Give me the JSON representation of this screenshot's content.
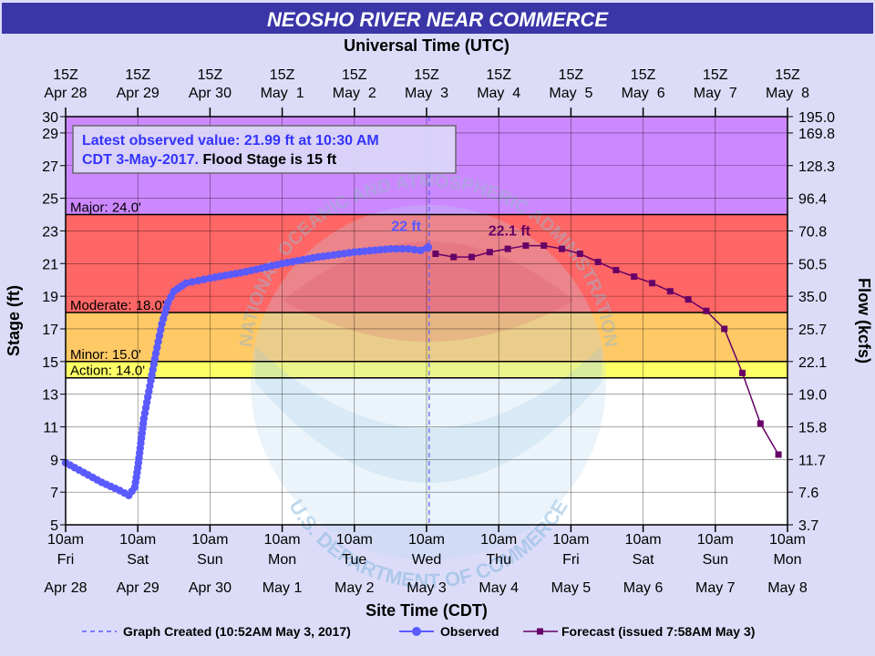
{
  "chart_data": {
    "type": "line",
    "title": "NEOSHO RIVER NEAR COMMERCE",
    "top_axis_title": "Universal Time (UTC)",
    "top_ticks": [
      {
        "l1": "15Z",
        "l2": "Apr 28"
      },
      {
        "l1": "15Z",
        "l2": "Apr 29"
      },
      {
        "l1": "15Z",
        "l2": "Apr 30"
      },
      {
        "l1": "15Z",
        "l2": "May  1"
      },
      {
        "l1": "15Z",
        "l2": "May  2"
      },
      {
        "l1": "15Z",
        "l2": "May  3"
      },
      {
        "l1": "15Z",
        "l2": "May  4"
      },
      {
        "l1": "15Z",
        "l2": "May  5"
      },
      {
        "l1": "15Z",
        "l2": "May  6"
      },
      {
        "l1": "15Z",
        "l2": "May  7"
      },
      {
        "l1": "15Z",
        "l2": "May  8"
      }
    ],
    "xlabel": "Site Time (CDT)",
    "bottom_ticks": [
      {
        "l1": "10am",
        "l2": "Fri",
        "l3": "Apr 28"
      },
      {
        "l1": "10am",
        "l2": "Sat",
        "l3": "Apr 29"
      },
      {
        "l1": "10am",
        "l2": "Sun",
        "l3": "Apr 30"
      },
      {
        "l1": "10am",
        "l2": "Mon",
        "l3": "May 1"
      },
      {
        "l1": "10am",
        "l2": "Tue",
        "l3": "May 2"
      },
      {
        "l1": "10am",
        "l2": "Wed",
        "l3": "May 3"
      },
      {
        "l1": "10am",
        "l2": "Thu",
        "l3": "May 4"
      },
      {
        "l1": "10am",
        "l2": "Fri",
        "l3": "May 5"
      },
      {
        "l1": "10am",
        "l2": "Sat",
        "l3": "May 6"
      },
      {
        "l1": "10am",
        "l2": "Sun",
        "l3": "May 7"
      },
      {
        "l1": "10am",
        "l2": "Mon",
        "l3": "May 8"
      }
    ],
    "ylabel": "Stage (ft)",
    "ylabel_right": "Flow (kcfs)",
    "ylim": [
      5,
      30
    ],
    "xlim": [
      "2017-04-28 10:00",
      "2017-05-08 10:00"
    ],
    "y_ticks": [
      5,
      7,
      9,
      11,
      13,
      15,
      17,
      19,
      21,
      23,
      25,
      27,
      29,
      30
    ],
    "flow_ticks": [
      {
        "stage": 5,
        "label": "3.7"
      },
      {
        "stage": 7,
        "label": "7.6"
      },
      {
        "stage": 9,
        "label": "11.7"
      },
      {
        "stage": 11,
        "label": "15.8"
      },
      {
        "stage": 13,
        "label": "19.0"
      },
      {
        "stage": 15,
        "label": "22.1"
      },
      {
        "stage": 17,
        "label": "25.7"
      },
      {
        "stage": 19,
        "label": "35.0"
      },
      {
        "stage": 21,
        "label": "50.5"
      },
      {
        "stage": 23,
        "label": "70.8"
      },
      {
        "stage": 25,
        "label": "96.4"
      },
      {
        "stage": 27,
        "label": "128.3"
      },
      {
        "stage": 29,
        "label": "169.8"
      },
      {
        "stage": 30,
        "label": "195.0"
      }
    ],
    "flood_categories": [
      {
        "name": "Action",
        "label": "Action: 14.0'",
        "from": 14,
        "to": 15,
        "color": "#ffff66"
      },
      {
        "name": "Minor",
        "label": "Minor: 15.0'",
        "from": 15,
        "to": 18,
        "color": "#ffc966"
      },
      {
        "name": "Moderate",
        "label": "Moderate: 18.0'",
        "from": 18,
        "to": 24,
        "color": "#ff6666"
      },
      {
        "name": "Major",
        "label": "Major: 24.0'",
        "from": 24,
        "to": 30,
        "color": "#cc88ff"
      }
    ],
    "info_box": {
      "line1": "Latest observed value: 21.99 ft at 10:30 AM",
      "line2a": "CDT 3-May-2017.",
      "line2b": " Flood Stage is 15 ft"
    },
    "graph_created": "2017-05-03 10:52",
    "grid": true,
    "series": [
      {
        "name": "Observed",
        "color": "#5a5aff",
        "peak_label": "22 ft",
        "points": [
          [
            "2017-04-28 10:00",
            8.8
          ],
          [
            "2017-04-28 16:00",
            8.2
          ],
          [
            "2017-04-28 22:00",
            7.6
          ],
          [
            "2017-04-29 04:00",
            7.1
          ],
          [
            "2017-04-29 07:00",
            6.8
          ],
          [
            "2017-04-29 09:00",
            7.3
          ],
          [
            "2017-04-29 10:00",
            8.5
          ],
          [
            "2017-04-29 11:00",
            10.0
          ],
          [
            "2017-04-29 12:00",
            11.5
          ],
          [
            "2017-04-29 14:00",
            13.5
          ],
          [
            "2017-04-29 16:00",
            15.5
          ],
          [
            "2017-04-29 18:00",
            17.3
          ],
          [
            "2017-04-29 20:00",
            18.6
          ],
          [
            "2017-04-29 22:00",
            19.3
          ],
          [
            "2017-04-30 02:00",
            19.8
          ],
          [
            "2017-04-30 10:00",
            20.1
          ],
          [
            "2017-04-30 22:00",
            20.5
          ],
          [
            "2017-05-01 10:00",
            21.0
          ],
          [
            "2017-05-01 22:00",
            21.4
          ],
          [
            "2017-05-02 10:00",
            21.7
          ],
          [
            "2017-05-02 22:00",
            21.9
          ],
          [
            "2017-05-03 04:00",
            21.9
          ],
          [
            "2017-05-03 08:00",
            21.8
          ],
          [
            "2017-05-03 10:30",
            21.99
          ]
        ]
      },
      {
        "name": "Forecast (issued 7:58AM May 3)",
        "color": "#660066",
        "peak_label": "22.1 ft",
        "points": [
          [
            "2017-05-03 13:00",
            21.6
          ],
          [
            "2017-05-03 19:00",
            21.4
          ],
          [
            "2017-05-04 01:00",
            21.4
          ],
          [
            "2017-05-04 07:00",
            21.7
          ],
          [
            "2017-05-04 13:00",
            21.9
          ],
          [
            "2017-05-04 19:00",
            22.1
          ],
          [
            "2017-05-05 01:00",
            22.1
          ],
          [
            "2017-05-05 07:00",
            21.9
          ],
          [
            "2017-05-05 13:00",
            21.6
          ],
          [
            "2017-05-05 19:00",
            21.1
          ],
          [
            "2017-05-06 01:00",
            20.6
          ],
          [
            "2017-05-06 07:00",
            20.2
          ],
          [
            "2017-05-06 13:00",
            19.8
          ],
          [
            "2017-05-06 19:00",
            19.3
          ],
          [
            "2017-05-07 01:00",
            18.8
          ],
          [
            "2017-05-07 07:00",
            18.1
          ],
          [
            "2017-05-07 13:00",
            17.0
          ],
          [
            "2017-05-07 19:00",
            14.3
          ],
          [
            "2017-05-08 01:00",
            11.2
          ],
          [
            "2017-05-08 07:00",
            9.3
          ]
        ]
      }
    ],
    "legend": {
      "created_label": "Graph Created (10:52AM May 3, 2017)",
      "observed_label": "Observed",
      "forecast_label": "Forecast (issued 7:58AM May 3)",
      "position": "bottom"
    },
    "watermark": {
      "top_text": "NATIONAL OCEANIC AND ATMOSPHERIC ADMINISTRATION",
      "bottom_text": "U.S. DEPARTMENT OF COMMERCE"
    },
    "colors": {
      "title_bar": "#3a36a8",
      "title_text": "#ffffff",
      "plot_bg": "#ffffff",
      "outer_bg": "#dcdcf8",
      "observed": "#5a5aff",
      "forecast": "#660066",
      "info_text": "#3333ff"
    }
  }
}
